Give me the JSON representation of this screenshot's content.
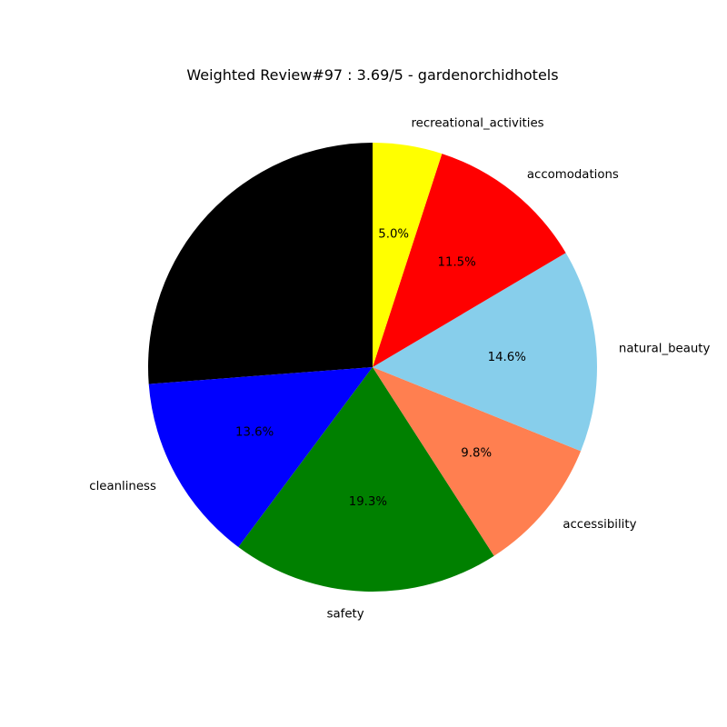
{
  "chart_data": {
    "type": "pie",
    "title": "Weighted Review#97 : 3.69/5 - gardenorchidhotels",
    "slices": [
      {
        "label": "",
        "pct": "",
        "value": 26.2,
        "color": "#000000"
      },
      {
        "label": "cleanliness",
        "pct": "13.6%",
        "value": 13.6,
        "color": "#0000ff"
      },
      {
        "label": "safety",
        "pct": "19.3%",
        "value": 19.3,
        "color": "#008000"
      },
      {
        "label": "accessibility",
        "pct": "9.8%",
        "value": 9.8,
        "color": "#ff7f50"
      },
      {
        "label": "natural_beauty",
        "pct": "14.6%",
        "value": 14.6,
        "color": "#87ceeb"
      },
      {
        "label": "accomodations",
        "pct": "11.5%",
        "value": 11.5,
        "color": "#ff0000"
      },
      {
        "label": "recreational_activities",
        "pct": "5.0%",
        "value": 5.0,
        "color": "#ffff00"
      }
    ],
    "start_angle_deg": 90,
    "direction": "counterclockwise"
  }
}
